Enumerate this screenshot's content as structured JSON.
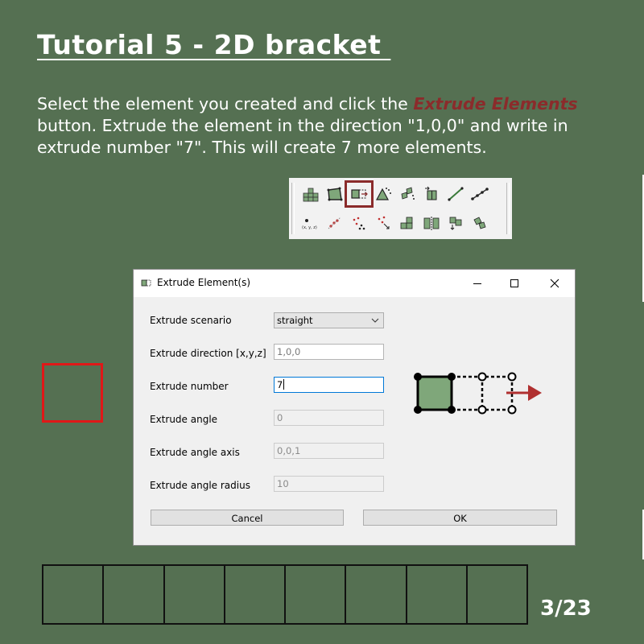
{
  "slide": {
    "title": "Tutorial 5 - 2D bracket ",
    "instruction": {
      "part1": "Select the element you created and click the ",
      "highlight": "Extrude Elements",
      "part2": " button. Extrude the element in the direction \"1,0,0\" and write in extrude number \"7\". This will create 7 more elements."
    },
    "page_number": "3/23",
    "colors": {
      "background": "#557052",
      "highlight": "#8b2b2b",
      "selected_element": "#e01818"
    },
    "strip_cells": 8
  },
  "toolbar": {
    "row1_icons": [
      "create-element-icon",
      "quad-element-icon",
      "extrude-elements-icon",
      "triangle-element-icon",
      "mesh-points-icon",
      "split-element-icon",
      "line-element-icon",
      "line-nodes-icon"
    ],
    "row2_icons": [
      "point-coordinates-icon",
      "transform-nodes-icon",
      "scatter-nodes-icon",
      "node-arrow-icon",
      "multi-quad-icon",
      "mirror-quad-icon",
      "move-quad-icon",
      "rotate-quad-icon"
    ],
    "point_label": "(x, y, z)",
    "selected": "extrude-elements-icon"
  },
  "dialog": {
    "title": "Extrude Element(s)",
    "fields": {
      "scenario": {
        "label": "Extrude scenario",
        "value": "straight"
      },
      "direction": {
        "label": "Extrude direction [x,y,z]",
        "value": "1,0,0"
      },
      "number": {
        "label": "Extrude number",
        "value": "7"
      },
      "angle": {
        "label": "Extrude angle",
        "value": "0"
      },
      "angle_axis": {
        "label": "Extrude angle axis",
        "value": "0,0,1"
      },
      "angle_radius": {
        "label": "Extrude angle radius",
        "value": "10"
      }
    },
    "buttons": {
      "cancel": "Cancel",
      "ok": "OK"
    }
  }
}
